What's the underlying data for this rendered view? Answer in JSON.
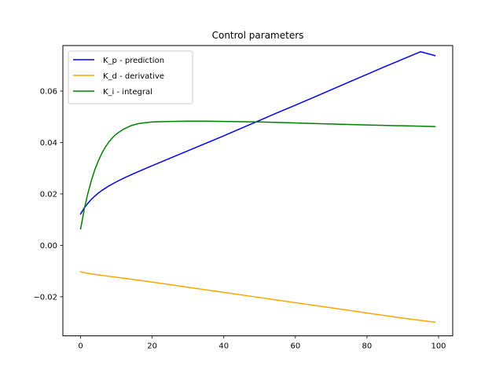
{
  "chart_data": {
    "type": "line",
    "title": "Control parameters",
    "xlabel": "",
    "ylabel": "",
    "xlim": [
      -4.95,
      103.95
    ],
    "ylim": [
      -0.0352,
      0.0777
    ],
    "xticks": [
      0,
      20,
      40,
      60,
      80,
      100
    ],
    "xtick_labels": [
      "0",
      "20",
      "40",
      "60",
      "80",
      "100"
    ],
    "yticks": [
      -0.02,
      0.0,
      0.02,
      0.04,
      0.06
    ],
    "ytick_labels": [
      "−0.02",
      "0.00",
      "0.02",
      "0.04",
      "0.06"
    ],
    "grid": false,
    "legend_position": "upper-left",
    "series": [
      {
        "name": "K_p - prediction",
        "color": "#0000ff",
        "x": [
          0,
          1,
          2,
          3,
          4,
          5,
          6,
          8,
          10,
          12,
          15,
          20,
          25,
          30,
          35,
          40,
          45,
          50,
          55,
          60,
          65,
          70,
          75,
          80,
          85,
          90,
          95,
          99
        ],
        "y": [
          0.0122,
          0.0145,
          0.0163,
          0.0179,
          0.0192,
          0.0204,
          0.0214,
          0.0232,
          0.0247,
          0.0261,
          0.028,
          0.031,
          0.0339,
          0.0368,
          0.0397,
          0.0426,
          0.0456,
          0.0486,
          0.0516,
          0.0545,
          0.0575,
          0.0605,
          0.0635,
          0.0665,
          0.0695,
          0.0724,
          0.0753,
          0.0738
        ]
      },
      {
        "name": "K_d - derivative",
        "color": "#ffa500",
        "x": [
          0,
          1,
          2,
          3,
          5,
          10,
          20,
          30,
          40,
          50,
          60,
          70,
          80,
          90,
          99
        ],
        "y": [
          -0.0103,
          -0.0106,
          -0.0109,
          -0.0111,
          -0.0115,
          -0.0124,
          -0.0143,
          -0.0163,
          -0.0183,
          -0.0203,
          -0.0223,
          -0.0243,
          -0.0263,
          -0.0283,
          -0.0299
        ]
      },
      {
        "name": "K_i - integral",
        "color": "#008000",
        "x": [
          0,
          0.5,
          1,
          2,
          3,
          4,
          5,
          6,
          7,
          8,
          9,
          10,
          12,
          14,
          16,
          18,
          20,
          25,
          30,
          35,
          40,
          50,
          60,
          70,
          80,
          90,
          99
        ],
        "y": [
          0.0064,
          0.01,
          0.014,
          0.02,
          0.0252,
          0.0295,
          0.033,
          0.036,
          0.0384,
          0.0404,
          0.042,
          0.0433,
          0.0452,
          0.0465,
          0.0473,
          0.0477,
          0.048,
          0.0482,
          0.0483,
          0.0483,
          0.0482,
          0.048,
          0.0476,
          0.0472,
          0.0468,
          0.0465,
          0.0462
        ]
      }
    ]
  }
}
